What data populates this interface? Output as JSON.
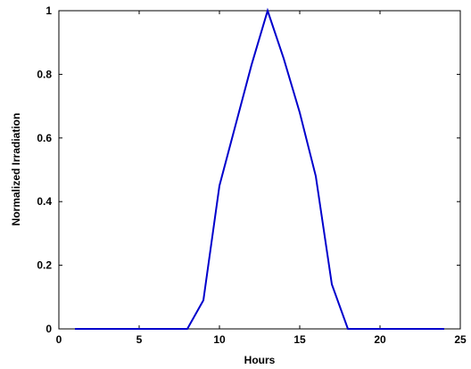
{
  "chart_data": {
    "type": "line",
    "title": "",
    "xlabel": "Hours",
    "ylabel": "Normalized Irradiation",
    "xlim": [
      0,
      25
    ],
    "ylim": [
      0,
      1
    ],
    "xticks": [
      0,
      5,
      10,
      15,
      20,
      25
    ],
    "yticks": [
      0,
      0.2,
      0.4,
      0.6,
      0.8,
      1
    ],
    "xtick_labels": [
      "0",
      "5",
      "10",
      "15",
      "20",
      "25"
    ],
    "ytick_labels": [
      "0",
      "0.2",
      "0.4",
      "0.6",
      "0.8",
      "1"
    ],
    "grid": false,
    "series": [
      {
        "color": "#0000cc",
        "x": [
          1,
          2,
          3,
          4,
          5,
          6,
          7,
          8,
          9,
          10,
          11,
          12,
          13,
          14,
          15,
          16,
          17,
          18,
          19,
          20,
          21,
          22,
          23,
          24
        ],
        "y": [
          0,
          0,
          0,
          0,
          0,
          0,
          0,
          0,
          0.09,
          0.45,
          0.64,
          0.83,
          1.0,
          0.85,
          0.68,
          0.48,
          0.14,
          0,
          0,
          0,
          0,
          0,
          0,
          0
        ]
      }
    ]
  }
}
